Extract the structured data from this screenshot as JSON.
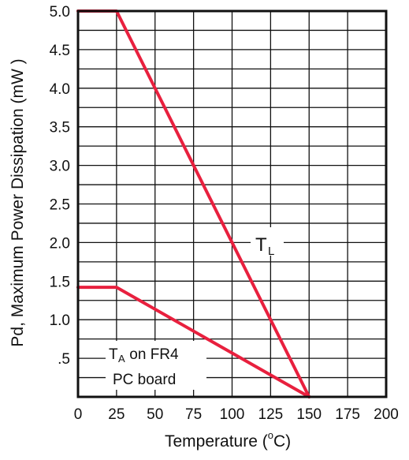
{
  "chart_data": {
    "type": "line",
    "title": "",
    "xlabel": "Temperature (°C)",
    "xlabel_main": "Temperature (",
    "xlabel_sup": "o",
    "xlabel_unit": "C)",
    "ylabel": "Pd, Maximum Power Dissipation (mW )",
    "xlim": [
      0,
      200
    ],
    "ylim": [
      0,
      5.0
    ],
    "x_ticks": [
      0,
      25,
      50,
      75,
      100,
      125,
      150,
      175,
      200
    ],
    "x_tick_labels": [
      "0",
      "25",
      "50",
      "75",
      "100",
      "125",
      "150",
      "175",
      "200"
    ],
    "y_ticks": [
      0.5,
      1.0,
      1.5,
      2.0,
      2.5,
      3.0,
      3.5,
      4.0,
      4.5,
      5.0
    ],
    "y_tick_labels": [
      ".5",
      "1.0",
      "1.5",
      "2.0",
      "2.5",
      "3.0",
      "3.5",
      "4.0",
      "4.5",
      "5.0"
    ],
    "grid": true,
    "series": [
      {
        "name": "TL",
        "label_main": "T",
        "label_sub": "L",
        "color": "#e8203e",
        "x": [
          0,
          25,
          150
        ],
        "y": [
          5.0,
          5.0,
          0
        ]
      },
      {
        "name": "TA on FR4 PC board",
        "label_main": "T",
        "label_sub": "A",
        "label_rest": " on FR4",
        "label_line2": "PC board",
        "color": "#e8203e",
        "x": [
          0,
          25,
          150
        ],
        "y": [
          1.42,
          1.42,
          0
        ]
      }
    ]
  }
}
